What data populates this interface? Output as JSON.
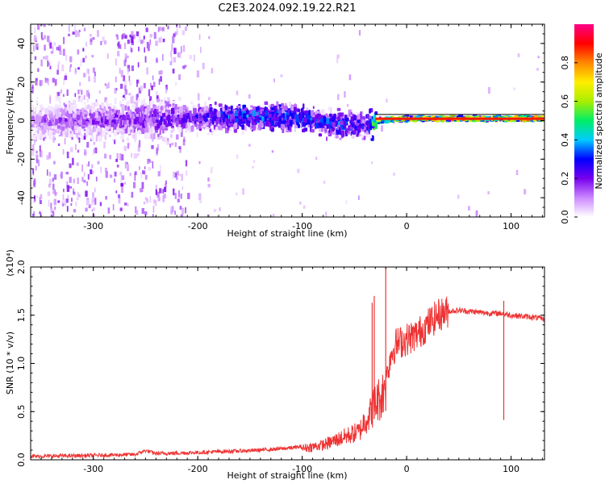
{
  "figure_title": "C2E3.2024.092.19.22.R21",
  "chart_data": [
    {
      "type": "heatmap",
      "title": "C2E3.2024.092.19.22.R21",
      "xlabel": "Height of straight line (km)",
      "ylabel": "Frequency (Hz)",
      "xlim": [
        -360,
        132
      ],
      "ylim": [
        -50,
        50
      ],
      "x_ticks": [
        -300,
        -200,
        -100,
        0,
        100
      ],
      "y_ticks": [
        -40,
        -20,
        0,
        20,
        40
      ],
      "x_tick_labels": [
        "-300",
        "-200",
        "-100",
        "0",
        "100"
      ],
      "y_tick_labels": [
        "-40",
        "-20",
        "0",
        "20",
        "40"
      ],
      "colorbar": {
        "label": "Normalized spectral amplitude",
        "range": [
          0,
          1
        ],
        "ticks": [
          0,
          0.2,
          0.4,
          0.6,
          0.8
        ],
        "tick_labels": [
          "0.0",
          "0.2",
          "0.4",
          "0.6",
          "0.8"
        ],
        "colors": [
          "#ffffff",
          "#cc88ff",
          "#7700ee",
          "#0000ff",
          "#00ccff",
          "#00ee66",
          "#aaee00",
          "#ffee00",
          "#ff8800",
          "#ff0000",
          "#ff0088"
        ]
      },
      "signal": {
        "description_points_x": [
          -360,
          -300,
          -220,
          -160,
          -120,
          -100,
          -80,
          -60,
          -40,
          -30,
          0,
          60,
          80,
          100,
          132
        ],
        "center_freq": [
          0,
          0,
          1,
          2,
          2,
          1,
          -1,
          -2,
          -3,
          0,
          1,
          1,
          1,
          1,
          1
        ],
        "amplitude": [
          0.15,
          0.2,
          0.25,
          0.38,
          0.38,
          0.36,
          0.35,
          0.35,
          0.3,
          0.7,
          0.8,
          0.82,
          0.75,
          0.8,
          0.8
        ]
      }
    },
    {
      "type": "line",
      "xlabel": "Height of straight line (km)",
      "ylabel": "SNR (10 * v/v)",
      "y_scale_note": "(x10⁴)",
      "xlim": [
        -360,
        132
      ],
      "ylim": [
        0,
        2.0
      ],
      "x_ticks": [
        -300,
        -200,
        -100,
        0,
        100
      ],
      "y_ticks": [
        0,
        0.5,
        1.0,
        1.5,
        2.0
      ],
      "x_tick_labels": [
        "-300",
        "-200",
        "-100",
        "0",
        "100"
      ],
      "y_tick_labels": [
        "0.0",
        "0.5",
        "1.0",
        "1.5",
        "2.0"
      ],
      "color": "#ee3333",
      "x": [
        -360,
        -300,
        -260,
        -250,
        -240,
        -200,
        -180,
        -150,
        -120,
        -100,
        -80,
        -60,
        -45,
        -40,
        -35,
        -30,
        -25,
        -22,
        -20,
        -15,
        -10,
        0,
        10,
        20,
        30,
        40,
        50,
        60,
        70,
        80,
        90,
        100,
        110,
        120,
        132
      ],
      "y": [
        0.0,
        0.01,
        0.02,
        0.06,
        0.03,
        0.04,
        0.05,
        0.06,
        0.08,
        0.1,
        0.13,
        0.2,
        0.25,
        0.35,
        0.4,
        0.5,
        0.55,
        0.6,
        0.8,
        1.1,
        1.2,
        1.25,
        1.3,
        1.4,
        1.5,
        1.54,
        1.55,
        1.54,
        1.53,
        1.52,
        1.52,
        1.5,
        1.49,
        1.48,
        1.46
      ],
      "spikes": [
        {
          "x": -33,
          "y": 1.63
        },
        {
          "x": -31,
          "y": 1.7
        },
        {
          "x": -20,
          "y": 2.03
        },
        {
          "x": 93,
          "y": 1.65
        }
      ]
    }
  ]
}
